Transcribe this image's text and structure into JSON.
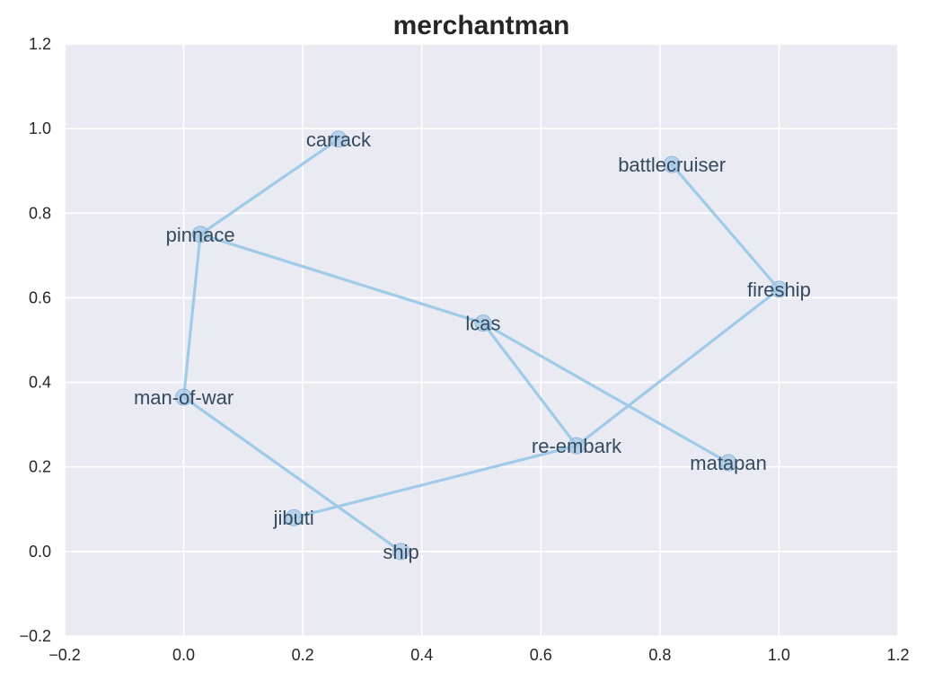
{
  "chart_data": {
    "type": "scatter",
    "title": "merchantman",
    "xlabel": "",
    "ylabel": "",
    "xlim": [
      -0.2,
      1.2
    ],
    "ylim": [
      -0.2,
      1.2
    ],
    "xticks": [
      "−0.2",
      "0.0",
      "0.2",
      "0.4",
      "0.6",
      "0.8",
      "1.0",
      "1.2"
    ],
    "yticks": [
      "−0.2",
      "0.0",
      "0.2",
      "0.4",
      "0.6",
      "0.8",
      "1.0",
      "1.2"
    ],
    "xtick_values": [
      -0.2,
      0.0,
      0.2,
      0.4,
      0.6,
      0.8,
      1.0,
      1.2
    ],
    "ytick_values": [
      -0.2,
      0.0,
      0.2,
      0.4,
      0.6,
      0.8,
      1.0,
      1.2
    ],
    "grid": true,
    "background": "#eaeaf2",
    "grid_color": "#ffffff",
    "line_color": "#a0cbe8",
    "marker_color": "#a6c8e6",
    "label_color": "#344a5e",
    "nodes": [
      {
        "name": "carrack",
        "x": 0.26,
        "y": 0.975
      },
      {
        "name": "battlecruiser",
        "x": 0.82,
        "y": 0.915
      },
      {
        "name": "pinnace",
        "x": 0.028,
        "y": 0.75
      },
      {
        "name": "fireship",
        "x": 1.0,
        "y": 0.62
      },
      {
        "name": "lcas",
        "x": 0.503,
        "y": 0.54
      },
      {
        "name": "man-of-war",
        "x": 0.0,
        "y": 0.365
      },
      {
        "name": "re-embark",
        "x": 0.66,
        "y": 0.25
      },
      {
        "name": "matapan",
        "x": 0.915,
        "y": 0.21
      },
      {
        "name": "jibuti",
        "x": 0.185,
        "y": 0.08
      },
      {
        "name": "ship",
        "x": 0.365,
        "y": 0.0
      }
    ],
    "edges": [
      [
        "carrack",
        "pinnace"
      ],
      [
        "pinnace",
        "man-of-war"
      ],
      [
        "pinnace",
        "lcas"
      ],
      [
        "man-of-war",
        "ship"
      ],
      [
        "lcas",
        "re-embark"
      ],
      [
        "lcas",
        "matapan"
      ],
      [
        "battlecruiser",
        "fireship"
      ],
      [
        "fireship",
        "re-embark"
      ],
      [
        "re-embark",
        "jibuti"
      ]
    ]
  }
}
